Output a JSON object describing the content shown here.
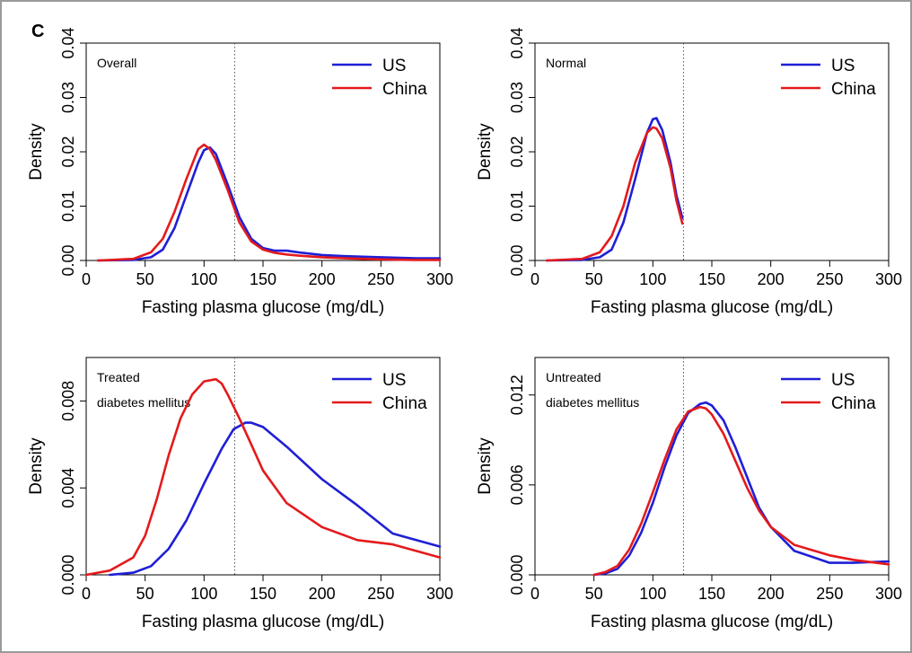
{
  "panel_letter": "C",
  "colors": {
    "US": "#1f1fd6",
    "China": "#e41a1c"
  },
  "chart_data": [
    {
      "type": "line",
      "title": "Overall",
      "xlabel": "Fasting plasma glucose (mg/dL)",
      "ylabel": "Density",
      "xlim": [
        0,
        300
      ],
      "ylim": [
        0,
        0.04
      ],
      "xticks": [
        0,
        50,
        100,
        150,
        200,
        250,
        300
      ],
      "yticks": [
        0.0,
        0.01,
        0.02,
        0.03,
        0.04
      ],
      "ytick_labels": [
        "0.00",
        "0.01",
        "0.02",
        "0.03",
        "0.04"
      ],
      "reference_line_x": 126,
      "legend": [
        "US",
        "China"
      ],
      "legend_position": "top-right",
      "series": [
        {
          "name": "US",
          "x": [
            10,
            40,
            55,
            65,
            75,
            85,
            95,
            100,
            105,
            110,
            120,
            130,
            140,
            150,
            160,
            170,
            180,
            200,
            220,
            250,
            280,
            300
          ],
          "y": [
            0,
            0.0001,
            0.0006,
            0.002,
            0.006,
            0.012,
            0.018,
            0.0203,
            0.0208,
            0.0196,
            0.014,
            0.008,
            0.004,
            0.0023,
            0.0018,
            0.0018,
            0.0015,
            0.001,
            0.0008,
            0.0006,
            0.0004,
            0.0004
          ]
        },
        {
          "name": "China",
          "x": [
            10,
            40,
            55,
            65,
            75,
            85,
            95,
            100,
            105,
            110,
            120,
            130,
            140,
            150,
            160,
            170,
            180,
            200,
            220,
            250,
            280,
            300
          ],
          "y": [
            0,
            0.0003,
            0.0015,
            0.004,
            0.009,
            0.015,
            0.0205,
            0.0213,
            0.0205,
            0.0185,
            0.013,
            0.007,
            0.0035,
            0.002,
            0.0014,
            0.0011,
            0.0009,
            0.0006,
            0.0004,
            0.0002,
            0.0001,
            0.0001
          ]
        }
      ]
    },
    {
      "type": "line",
      "title": "Normal",
      "xlabel": "Fasting plasma glucose (mg/dL)",
      "ylabel": "Density",
      "xlim": [
        0,
        300
      ],
      "ylim": [
        0,
        0.04
      ],
      "xticks": [
        0,
        50,
        100,
        150,
        200,
        250,
        300
      ],
      "yticks": [
        0.0,
        0.01,
        0.02,
        0.03,
        0.04
      ],
      "ytick_labels": [
        "0.00",
        "0.01",
        "0.02",
        "0.03",
        "0.04"
      ],
      "reference_line_x": 126,
      "legend": [
        "US",
        "China"
      ],
      "legend_position": "top-right",
      "series": [
        {
          "name": "US",
          "x": [
            10,
            40,
            55,
            65,
            75,
            85,
            95,
            100,
            103,
            108,
            115,
            120,
            125
          ],
          "y": [
            0,
            0.0001,
            0.0006,
            0.002,
            0.007,
            0.015,
            0.0235,
            0.026,
            0.0262,
            0.024,
            0.018,
            0.012,
            0.0078
          ]
        },
        {
          "name": "China",
          "x": [
            10,
            40,
            55,
            65,
            75,
            85,
            95,
            100,
            103,
            108,
            115,
            120,
            125
          ],
          "y": [
            0,
            0.0003,
            0.0015,
            0.0045,
            0.01,
            0.018,
            0.0235,
            0.0245,
            0.0243,
            0.0225,
            0.017,
            0.011,
            0.0068
          ]
        }
      ]
    },
    {
      "type": "line",
      "title": "Treated diabetes mellitus",
      "title_lines": [
        "Treated",
        "diabetes mellitus"
      ],
      "xlabel": "Fasting plasma glucose (mg/dL)",
      "ylabel": "Density",
      "xlim": [
        0,
        300
      ],
      "ylim": [
        0,
        0.01
      ],
      "xticks": [
        0,
        50,
        100,
        150,
        200,
        250,
        300
      ],
      "yticks": [
        0.0,
        0.004,
        0.008
      ],
      "ytick_labels": [
        "0.000",
        "0.004",
        "0.008"
      ],
      "reference_line_x": 126,
      "legend": [
        "US",
        "China"
      ],
      "legend_position": "top-right",
      "series": [
        {
          "name": "US",
          "x": [
            20,
            40,
            55,
            70,
            85,
            100,
            115,
            125,
            135,
            140,
            150,
            170,
            200,
            230,
            260,
            280,
            300
          ],
          "y": [
            0,
            0.0001,
            0.0004,
            0.0012,
            0.0025,
            0.0042,
            0.0058,
            0.0067,
            0.007,
            0.007,
            0.0068,
            0.0059,
            0.0044,
            0.0032,
            0.0019,
            0.0016,
            0.0013
          ]
        },
        {
          "name": "China",
          "x": [
            0,
            20,
            40,
            50,
            60,
            70,
            80,
            90,
            100,
            110,
            115,
            120,
            130,
            140,
            150,
            170,
            200,
            230,
            260,
            280,
            300
          ],
          "y": [
            0,
            0.0002,
            0.0008,
            0.0018,
            0.0035,
            0.0055,
            0.0072,
            0.0083,
            0.0089,
            0.009,
            0.0088,
            0.0083,
            0.0072,
            0.006,
            0.0048,
            0.0033,
            0.0022,
            0.0016,
            0.0014,
            0.0011,
            0.0008
          ]
        }
      ]
    },
    {
      "type": "line",
      "title": "Untreated diabetes mellitus",
      "title_lines": [
        "Untreated",
        "diabetes mellitus"
      ],
      "xlabel": "Fasting plasma glucose (mg/dL)",
      "ylabel": "Density",
      "xlim": [
        0,
        300
      ],
      "ylim": [
        0,
        0.0145
      ],
      "xticks": [
        0,
        50,
        100,
        150,
        200,
        250,
        300
      ],
      "yticks": [
        0.0,
        0.006,
        0.012
      ],
      "ytick_labels": [
        "0.000",
        "0.006",
        "0.012"
      ],
      "reference_line_x": 126,
      "legend": [
        "US",
        "China"
      ],
      "legend_position": "top-right",
      "series": [
        {
          "name": "US",
          "x": [
            50,
            60,
            70,
            80,
            90,
            100,
            110,
            120,
            130,
            140,
            145,
            150,
            160,
            170,
            180,
            190,
            200,
            220,
            250,
            270,
            300
          ],
          "y": [
            0,
            0.0001,
            0.0004,
            0.0013,
            0.0028,
            0.0048,
            0.0072,
            0.0093,
            0.0108,
            0.0114,
            0.0115,
            0.0113,
            0.0103,
            0.0085,
            0.0065,
            0.0045,
            0.0032,
            0.0016,
            0.0008,
            0.0008,
            0.0009
          ]
        },
        {
          "name": "China",
          "x": [
            50,
            60,
            70,
            80,
            90,
            100,
            110,
            120,
            130,
            140,
            145,
            150,
            160,
            170,
            180,
            190,
            200,
            220,
            250,
            270,
            300
          ],
          "y": [
            0,
            0.0002,
            0.0006,
            0.0017,
            0.0034,
            0.0055,
            0.0077,
            0.0097,
            0.0109,
            0.0112,
            0.0111,
            0.0107,
            0.0094,
            0.0076,
            0.0058,
            0.0043,
            0.0032,
            0.002,
            0.0013,
            0.001,
            0.0007
          ]
        }
      ]
    }
  ]
}
